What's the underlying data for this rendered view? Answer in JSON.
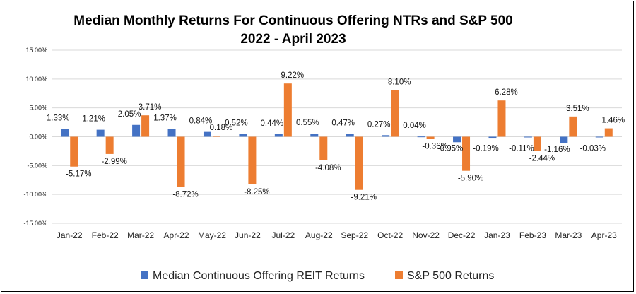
{
  "chart_data": {
    "type": "bar",
    "title_line1": "Median Monthly Returns For Continuous Offering NTRs and S&P 500",
    "title_line2": "2022 - April 2023",
    "categories": [
      "Jan-22",
      "Feb-22",
      "Mar-22",
      "Apr-22",
      "May-22",
      "Jun-22",
      "Jul-22",
      "Aug-22",
      "Sep-22",
      "Oct-22",
      "Nov-22",
      "Dec-22",
      "Jan-23",
      "Feb-23",
      "Mar-23",
      "Apr-23"
    ],
    "series": [
      {
        "name": "Median Continuous Offering REIT Returns",
        "color": "#4472C4",
        "values": [
          1.33,
          1.21,
          2.05,
          1.37,
          0.84,
          0.52,
          0.44,
          0.55,
          0.47,
          0.27,
          0.04,
          -0.95,
          -0.19,
          -0.11,
          -1.16,
          -0.03
        ],
        "labels": [
          "1.33%",
          "1.21%",
          "2.05%",
          "1.37%",
          "0.84%",
          "0.52%",
          "0.44%",
          "0.55%",
          "0.47%",
          "0.27%",
          "0.04%",
          "-0.95%",
          "-0.19%",
          "-0.11%",
          "-1.16%",
          "-0.03%"
        ]
      },
      {
        "name": "S&P 500 Returns",
        "color": "#ED7D31",
        "values": [
          -5.17,
          -2.99,
          3.71,
          -8.72,
          0.18,
          -8.25,
          9.22,
          -4.08,
          -9.21,
          8.1,
          -0.36,
          -5.9,
          6.28,
          -2.44,
          3.51,
          1.46
        ],
        "labels": [
          "-5.17%",
          "-2.99%",
          "3.71%",
          "-8.72%",
          "0.18%",
          "-8.25%",
          "9.22%",
          "-4.08%",
          "-9.21%",
          "8.10%",
          "-0.36%",
          "-5.90%",
          "6.28%",
          "-2.44%",
          "3.51%",
          "1.46%"
        ]
      }
    ],
    "yticks": [
      15,
      10,
      5,
      0,
      -5,
      -10,
      -15
    ],
    "ytick_labels": [
      "15.00%",
      "10.00%",
      "5.00%",
      "0.00%",
      "-5.00%",
      "-10.00%",
      "-15.00%"
    ],
    "ylim": [
      -15,
      15
    ],
    "grid": true,
    "legend_position": "bottom"
  }
}
